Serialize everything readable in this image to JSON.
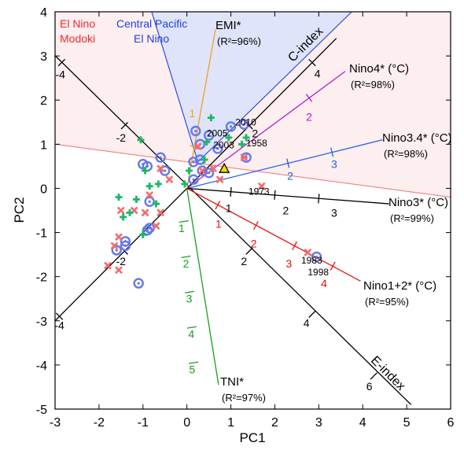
{
  "chart_data": {
    "type": "scatter",
    "xlabel": "PC1",
    "ylabel": "PC2",
    "xlim": [
      -3,
      6
    ],
    "ylim": [
      -5,
      4
    ],
    "xticks": [
      -3,
      -2,
      -1,
      0,
      1,
      2,
      3,
      4,
      5,
      6
    ],
    "yticks": [
      -5,
      -4,
      -3,
      -2,
      -1,
      0,
      1,
      2,
      3,
      4
    ],
    "grid": false,
    "colors": {
      "modoki_region": "#fdeef0",
      "central_pacific_region": "#dfe4fa",
      "modoki_text": "#f02a2a",
      "central_pacific_text": "#1f3fe8",
      "divider_red": "#f07f7f",
      "divider_blue": "#1f3fe8",
      "green_cross": "#19b865",
      "red_x": "#f56a6a",
      "blue_circle": "#6478ee",
      "year_triangle": "#f0e000"
    },
    "region_labels": [
      {
        "lines": [
          "El Nino",
          "Modoki"
        ],
        "color": "#f02a2a"
      },
      {
        "lines": [
          "Central Pacific",
          "El Nino"
        ],
        "color": "#1f3fe8"
      }
    ],
    "axes_lines": [
      {
        "name": "C-index",
        "color": "#000000",
        "from": [
          -3.3,
          -3.3
        ],
        "to": [
          3.4,
          3.4
        ],
        "ticks": [
          {
            "t": -4,
            "label": "-4",
            "lx": -2.9,
            "ly": -3.1
          },
          {
            "t": -2,
            "label": "-2",
            "lx": -1.5,
            "ly": -1.65
          },
          {
            "t": 2,
            "label": "2",
            "lx": 1.55,
            "ly": 1.25
          },
          {
            "t": 4,
            "label": "4",
            "lx": 2.97,
            "ly": 2.6
          }
        ]
      },
      {
        "name": "E-index",
        "color": "#000000",
        "from": [
          -3.3,
          3.3
        ],
        "to": [
          5.1,
          -4.9
        ],
        "ticks": [
          {
            "t": 2,
            "label": "2",
            "lx": 1.3,
            "ly": -1.65
          },
          {
            "t": 4,
            "label": "4",
            "lx": 2.72,
            "ly": -3.05
          },
          {
            "t": 6,
            "label": "6",
            "lx": 4.15,
            "ly": -4.48
          },
          {
            "t": -2,
            "label": "-2",
            "lx": -1.5,
            "ly": 1.15
          },
          {
            "t": -4,
            "label": "-4",
            "lx": -2.88,
            "ly": 2.58
          }
        ]
      },
      {
        "name": "EMI*",
        "color": "#f0a020",
        "from": [
          0,
          0
        ],
        "to": [
          0.65,
          3.6
        ],
        "ticks": [
          {
            "t": 1,
            "label": "1",
            "lx": 0.12,
            "ly": 1.7
          }
        ]
      },
      {
        "name": "TNI*",
        "color": "#16a020",
        "from": [
          0,
          0
        ],
        "to": [
          0.72,
          -4.45
        ],
        "ticks": [
          {
            "t": 1,
            "label": "1",
            "lx": -0.12,
            "ly": -0.9
          },
          {
            "t": 2,
            "label": "2",
            "lx": -0.02,
            "ly": -1.7
          },
          {
            "t": 3,
            "label": "3",
            "lx": 0.05,
            "ly": -2.5
          },
          {
            "t": 4,
            "label": "4",
            "lx": 0.1,
            "ly": -3.3
          },
          {
            "t": 5,
            "label": "5",
            "lx": 0.12,
            "ly": -4.1
          }
        ]
      },
      {
        "name": "Nino4*",
        "color": "#b020c0",
        "from": [
          0,
          0
        ],
        "to": [
          3.6,
          2.65
        ],
        "ticks": [
          {
            "t": 2,
            "label": "2",
            "lx": 2.78,
            "ly": 1.62
          }
        ]
      },
      {
        "name": "Nino3.4*",
        "color": "#1f5fe8",
        "from": [
          0,
          0
        ],
        "to": [
          4.45,
          1.1
        ],
        "ticks": [
          {
            "t": 2,
            "label": "2",
            "lx": 2.35,
            "ly": 0.28
          },
          {
            "t": 3,
            "label": "3",
            "lx": 3.35,
            "ly": 0.55
          }
        ]
      },
      {
        "name": "Nino3*",
        "color": "#000000",
        "from": [
          0,
          0
        ],
        "to": [
          4.6,
          -0.35
        ],
        "ticks": [
          {
            "t": 1,
            "label": "1",
            "lx": 0.95,
            "ly": -0.45
          },
          {
            "t": 2,
            "label": "2",
            "lx": 2.25,
            "ly": -0.5
          },
          {
            "t": 3,
            "label": "3",
            "lx": 3.35,
            "ly": -0.55
          }
        ]
      },
      {
        "name": "Nino1+2*",
        "color": "#e81010",
        "from": [
          0,
          0
        ],
        "to": [
          3.95,
          -2.1
        ],
        "ticks": [
          {
            "t": 1,
            "label": "1",
            "lx": 0.72,
            "ly": -0.8
          },
          {
            "t": 2,
            "label": "2",
            "lx": 1.52,
            "ly": -1.25
          },
          {
            "t": 3,
            "label": "3",
            "lx": 2.32,
            "ly": -1.7
          },
          {
            "t": 4,
            "label": "4",
            "lx": 3.12,
            "ly": -2.15
          }
        ]
      }
    ],
    "axis_labels": [
      {
        "text": "C-index",
        "color": "#000000"
      },
      {
        "text": "E-index",
        "color": "#000000"
      },
      {
        "text": "EMI*",
        "sub": "(R²=96%)",
        "color": "#000000"
      },
      {
        "text": "Nino4* (°C)",
        "sub": "(R²=98%)",
        "color": "#000000"
      },
      {
        "text": "Nino3.4* (°C)",
        "sub": "(R²=98%)",
        "color": "#000000"
      },
      {
        "text": "Nino3* (°C)",
        "sub": "(R²=99%)",
        "color": "#000000"
      },
      {
        "text": "Nino1+2* (°C)",
        "sub": "(R²=95%)",
        "color": "#000000"
      },
      {
        "text": "TNI*",
        "sub": "(R²=97%)",
        "color": "#000000"
      }
    ],
    "year_labels": [
      {
        "text": "2010",
        "x": 1.1,
        "y": 1.5
      },
      {
        "text": "2005",
        "x": 0.45,
        "y": 1.25
      },
      {
        "text": "2003",
        "x": 0.6,
        "y": 0.98
      },
      {
        "text": "1958",
        "x": 1.35,
        "y": 1.02
      },
      {
        "text": "1973",
        "x": 1.4,
        "y": -0.07
      },
      {
        "text": "1983",
        "x": 2.6,
        "y": -1.63
      },
      {
        "text": "1998",
        "x": 2.75,
        "y": -1.9
      }
    ],
    "series": [
      {
        "kind": "blue_circle",
        "points": [
          [
            0.7,
            0.9
          ],
          [
            1.0,
            1.4
          ],
          [
            1.35,
            0.7
          ],
          [
            0.3,
            0.65
          ],
          [
            0.15,
            0.6
          ],
          [
            0.3,
            1.0
          ],
          [
            0.5,
            1.2
          ],
          [
            0.2,
            1.3
          ],
          [
            1.3,
            1.45
          ],
          [
            -0.6,
            0.7
          ],
          [
            -0.9,
            0.5
          ],
          [
            -1.0,
            0.55
          ],
          [
            -0.5,
            0.4
          ],
          [
            -0.85,
            -0.3
          ],
          [
            -0.9,
            -0.95
          ],
          [
            -0.85,
            -0.9
          ],
          [
            -1.4,
            -1.2
          ],
          [
            -1.4,
            -1.3
          ],
          [
            -1.6,
            -1.4
          ],
          [
            -1.1,
            -2.15
          ],
          [
            0.5,
            0.35
          ],
          [
            0.35,
            0.4
          ],
          [
            2.95,
            -1.55
          ],
          [
            0.15,
            0.2
          ]
        ]
      },
      {
        "kind": "red_x",
        "points": [
          [
            0.25,
            0.95
          ],
          [
            0.35,
            0.4
          ],
          [
            0.6,
            0.45
          ],
          [
            0.75,
            0.2
          ],
          [
            1.3,
            0.7
          ],
          [
            1.7,
            0.05
          ],
          [
            2.75,
            -1.45
          ],
          [
            -0.4,
            0.2
          ],
          [
            -0.6,
            -0.55
          ],
          [
            -0.7,
            -0.85
          ],
          [
            -0.95,
            -0.55
          ],
          [
            -1.2,
            -0.5
          ],
          [
            -1.5,
            -0.5
          ],
          [
            -1.55,
            -1.1
          ],
          [
            -1.65,
            -1.3
          ],
          [
            -1.8,
            -1.75
          ],
          [
            -1.55,
            -1.85
          ],
          [
            -0.85,
            -0.15
          ],
          [
            -0.6,
            0.45
          ]
        ]
      },
      {
        "kind": "green_cross",
        "points": [
          [
            0.05,
            0.4
          ],
          [
            0.4,
            0.65
          ],
          [
            0.55,
            1.6
          ],
          [
            0.45,
            1.05
          ],
          [
            0.95,
            1.15
          ],
          [
            1.25,
            1.0
          ],
          [
            1.35,
            1.15
          ],
          [
            -1.05,
            1.1
          ],
          [
            -0.95,
            0.4
          ],
          [
            -0.85,
            0.05
          ],
          [
            -1.15,
            -0.25
          ],
          [
            -1.3,
            -0.55
          ],
          [
            -1.55,
            -0.2
          ],
          [
            -1.45,
            -0.65
          ],
          [
            -0.7,
            -0.35
          ],
          [
            -0.65,
            0.1
          ],
          [
            -1.0,
            -1.05
          ],
          [
            -0.05,
            0.1
          ]
        ]
      }
    ],
    "highlight": {
      "kind": "year_triangle",
      "x": 0.85,
      "y": 0.45
    }
  }
}
